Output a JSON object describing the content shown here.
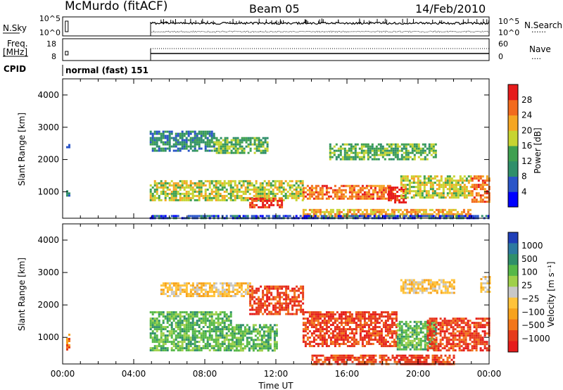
{
  "header": {
    "station": "McMurdo (fitACF)",
    "beam": "Beam 05",
    "date": "14/Feb/2010"
  },
  "top_panels": {
    "nsky_label": "N.Sky",
    "nsearch_label": "N.Search",
    "nsearch_marker": "......",
    "left_ticks_noise": [
      "10^5",
      "10^0"
    ],
    "right_ticks_noise": [
      "10^5",
      "10^0"
    ],
    "freq_label_1": "Freq.",
    "freq_label_2": "[MHz]",
    "left_ticks_freq": [
      "18",
      "8"
    ],
    "nave_label": "Nave",
    "nave_marker": "....",
    "right_ticks_nave": [
      "60",
      "0"
    ],
    "cpid_label": "CPID",
    "cpid_value": "normal (fast) 151"
  },
  "axes": {
    "ylabel": "Slant Range [km]",
    "xlabel": "Time UT",
    "y_ticks": [
      "1000",
      "2000",
      "3000",
      "4000"
    ],
    "x_ticks": [
      "00:00",
      "04:00",
      "08:00",
      "12:00",
      "16:00",
      "20:00",
      "00:00"
    ]
  },
  "colorbars": {
    "power": {
      "label": "Power [dB]",
      "ticks": [
        "4",
        "8",
        "12",
        "16",
        "20",
        "24",
        "28"
      ],
      "colors": [
        "#0000ff",
        "#2a55c8",
        "#2f8f6a",
        "#3fa050",
        "#c7d431",
        "#f5a623",
        "#f26b1d",
        "#e61c1c"
      ]
    },
    "velocity": {
      "label": "Velocity [m s⁻¹]",
      "ticks": [
        "1000",
        "500",
        "100",
        "25",
        "−25",
        "−100",
        "−500",
        "−1000"
      ],
      "colors": [
        "#1f3fb8",
        "#2c79a0",
        "#2f8f6a",
        "#56b848",
        "#9fd04a",
        "#c8c8c8",
        "#ffc33a",
        "#f7a21c",
        "#f2761a",
        "#e63b1c",
        "#e61c1c"
      ]
    }
  },
  "chart_data": [
    {
      "type": "heatmap",
      "title": "Power",
      "x": [
        "00:00",
        "04:00",
        "08:00",
        "12:00",
        "16:00",
        "20:00",
        "00:00"
      ],
      "xlim_hours": [
        0,
        24
      ],
      "ylim_km": [
        180,
        4500
      ],
      "colorbar_label": "Power [dB]",
      "colorbar_range": [
        0,
        30
      ],
      "regions": [
        {
          "t": [
            0.2,
            0.4
          ],
          "r": [
            900,
            1100
          ],
          "value": 8
        },
        {
          "t": [
            0.2,
            0.4
          ],
          "r": [
            2350,
            2480
          ],
          "value": 6
        },
        {
          "t": [
            4.9,
            13.5
          ],
          "r": [
            750,
            1350
          ],
          "value": 18
        },
        {
          "t": [
            4.9,
            8.5
          ],
          "r": [
            2300,
            2900
          ],
          "value": 10
        },
        {
          "t": [
            8.5,
            11.5
          ],
          "r": [
            2200,
            2700
          ],
          "value": 14
        },
        {
          "t": [
            10.5,
            12.3
          ],
          "r": [
            500,
            800
          ],
          "value": 28
        },
        {
          "t": [
            13.5,
            18.5
          ],
          "r": [
            750,
            1200
          ],
          "value": 26
        },
        {
          "t": [
            18.3,
            19.3
          ],
          "r": [
            650,
            1150
          ],
          "value": 28
        },
        {
          "t": [
            19.0,
            23.0
          ],
          "r": [
            800,
            1500
          ],
          "value": 16
        },
        {
          "t": [
            23.0,
            24.0
          ],
          "r": [
            700,
            1500
          ],
          "value": 24
        },
        {
          "t": [
            15.0,
            21.0
          ],
          "r": [
            2000,
            2500
          ],
          "value": 14
        },
        {
          "t": [
            13.5,
            23.0
          ],
          "r": [
            250,
            450
          ],
          "value": 20
        },
        {
          "t": [
            4.9,
            24.0
          ],
          "r": [
            180,
            260
          ],
          "value": 6
        }
      ]
    },
    {
      "type": "heatmap",
      "title": "Velocity",
      "x": [
        "00:00",
        "04:00",
        "08:00",
        "12:00",
        "16:00",
        "20:00",
        "00:00"
      ],
      "xlim_hours": [
        0,
        24
      ],
      "ylim_km": [
        180,
        4500
      ],
      "colorbar_label": "Velocity [m s⁻¹]",
      "colorbar_range": [
        -1000,
        1000
      ],
      "regions": [
        {
          "t": [
            0.2,
            0.4
          ],
          "r": [
            600,
            1100
          ],
          "value": -100
        },
        {
          "t": [
            4.9,
            9.5
          ],
          "r": [
            600,
            1800
          ],
          "value": 150
        },
        {
          "t": [
            9.5,
            12.0
          ],
          "r": [
            600,
            1400
          ],
          "value": 100
        },
        {
          "t": [
            5.5,
            10.5
          ],
          "r": [
            2300,
            2700
          ],
          "value": 0
        },
        {
          "t": [
            10.5,
            13.5
          ],
          "r": [
            1700,
            2600
          ],
          "value": -150
        },
        {
          "t": [
            13.5,
            18.8
          ],
          "r": [
            700,
            1800
          ],
          "value": -200
        },
        {
          "t": [
            18.8,
            21.0
          ],
          "r": [
            600,
            1500
          ],
          "value": 100
        },
        {
          "t": [
            20.5,
            24.0
          ],
          "r": [
            600,
            1600
          ],
          "value": -150
        },
        {
          "t": [
            14.0,
            22.0
          ],
          "r": [
            180,
            450
          ],
          "value": -250
        },
        {
          "t": [
            19.0,
            22.0
          ],
          "r": [
            2400,
            2800
          ],
          "value": 0
        },
        {
          "t": [
            23.5,
            24.0
          ],
          "r": [
            2400,
            2900
          ],
          "value": 0
        }
      ]
    }
  ]
}
